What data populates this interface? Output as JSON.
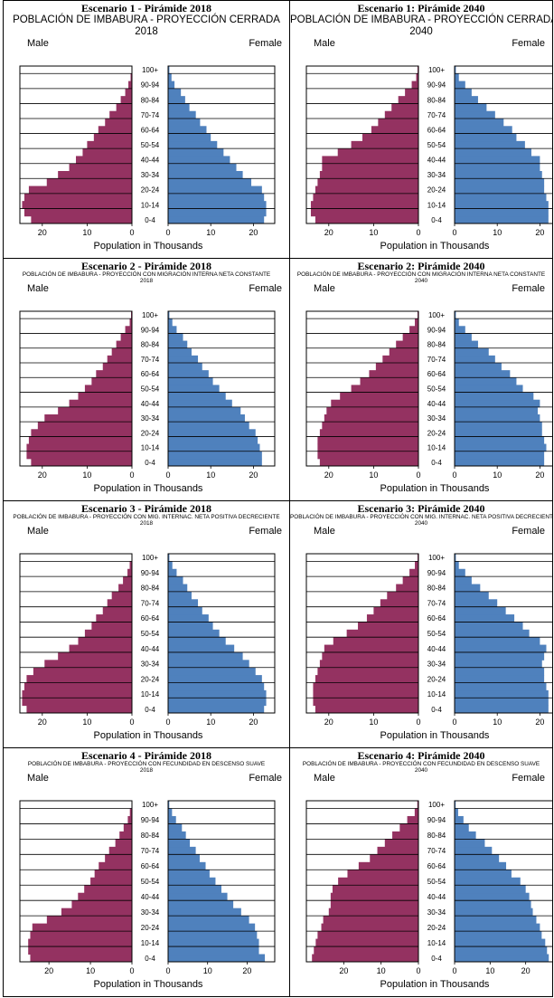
{
  "figure": {
    "male_color": "#943261",
    "female_color": "#4f81bd",
    "common": {
      "male_label": "Male",
      "female_label": "Female",
      "xlabel": "Population in Thousands",
      "age_groups": [
        "0-4",
        "5-9",
        "10-14",
        "15-19",
        "20-24",
        "25-29",
        "30-34",
        "35-39",
        "40-44",
        "45-49",
        "50-54",
        "55-59",
        "60-64",
        "65-69",
        "70-74",
        "75-79",
        "80-84",
        "85-89",
        "90-94",
        "95-99",
        "100+"
      ],
      "age_tick_labels": [
        "100+",
        "90-94",
        "80-84",
        "70-74",
        "60-64",
        "50-54",
        "40-44",
        "30-34",
        "20-24",
        "10-14",
        "0-4"
      ],
      "x_ticks": [
        "20",
        "10",
        "0",
        "0",
        "10",
        "20"
      ]
    }
  },
  "chart_data": [
    {
      "type": "bar",
      "heading": "Escenario 1 - Pirámide 2018",
      "subtitle_lines": [
        "POBLACIÓN DE IMBABURA - PROYECCIÓN CERRADA",
        "2018"
      ],
      "xlim": [
        0,
        25
      ],
      "categories": [
        "0-4",
        "5-9",
        "10-14",
        "15-19",
        "20-24",
        "25-29",
        "30-34",
        "35-39",
        "40-44",
        "45-49",
        "50-54",
        "55-59",
        "60-64",
        "65-69",
        "70-74",
        "75-79",
        "80-84",
        "85-89",
        "90-94",
        "95-99",
        "100+"
      ],
      "series": [
        {
          "name": "Male",
          "values": [
            22.5,
            24.0,
            24.5,
            24.0,
            23.0,
            19.0,
            16.5,
            14.0,
            12.5,
            11.0,
            10.0,
            8.5,
            7.5,
            6.0,
            5.0,
            3.5,
            2.5,
            1.5,
            0.8,
            0.3,
            0.1
          ]
        },
        {
          "name": "Female",
          "values": [
            22.5,
            23.0,
            23.0,
            22.5,
            22.0,
            19.5,
            17.5,
            16.0,
            14.5,
            13.0,
            11.5,
            10.0,
            9.0,
            7.5,
            6.5,
            5.0,
            4.0,
            3.0,
            1.5,
            0.8,
            0.3
          ]
        }
      ]
    },
    {
      "type": "bar",
      "heading": "Escenario 1: Pirámide 2040",
      "subtitle_lines": [
        "POBLACIÓN DE IMBABURA - PROYECCIÓN CERRADA",
        "2040"
      ],
      "xlim": [
        0,
        25
      ],
      "categories": [
        "0-4",
        "5-9",
        "10-14",
        "15-19",
        "20-24",
        "25-29",
        "30-34",
        "35-39",
        "40-44",
        "45-49",
        "50-54",
        "55-59",
        "60-64",
        "65-69",
        "70-74",
        "75-79",
        "80-84",
        "85-89",
        "90-94",
        "95-99",
        "100+"
      ],
      "series": [
        {
          "name": "Male",
          "values": [
            23.0,
            24.0,
            24.0,
            23.5,
            23.0,
            22.5,
            22.0,
            21.5,
            21.5,
            18.0,
            15.0,
            12.5,
            10.5,
            9.0,
            7.5,
            6.0,
            4.5,
            3.0,
            1.5,
            0.5,
            0.2
          ]
        },
        {
          "name": "Female",
          "values": [
            22.0,
            22.0,
            22.0,
            21.5,
            21.0,
            21.0,
            20.5,
            20.0,
            20.0,
            18.0,
            16.5,
            14.5,
            13.5,
            11.5,
            9.5,
            7.5,
            5.5,
            4.0,
            2.5,
            1.0,
            0.3
          ]
        }
      ]
    },
    {
      "type": "bar",
      "heading": "Escenario 2 - Pirámide 2018",
      "subtitle_lines": [
        "POBLACIÓN DE IMBABURA - PROYECCIÓN CON MIGRACIÓN INTERNA NETA CONSTANTE",
        "2018"
      ],
      "xlim": [
        0,
        25
      ],
      "categories": [
        "0-4",
        "5-9",
        "10-14",
        "15-19",
        "20-24",
        "25-29",
        "30-34",
        "35-39",
        "40-44",
        "45-49",
        "50-54",
        "55-59",
        "60-64",
        "65-69",
        "70-74",
        "75-79",
        "80-84",
        "85-89",
        "90-94",
        "95-99",
        "100+"
      ],
      "series": [
        {
          "name": "Male",
          "values": [
            22.5,
            23.5,
            23.5,
            23.0,
            22.5,
            21.0,
            19.5,
            16.5,
            14.0,
            12.0,
            10.5,
            9.0,
            8.0,
            6.5,
            5.5,
            4.5,
            3.5,
            2.5,
            1.5,
            0.5,
            0.2
          ]
        },
        {
          "name": "Female",
          "values": [
            22.0,
            22.0,
            21.5,
            21.0,
            20.5,
            19.0,
            18.0,
            17.0,
            15.0,
            13.5,
            12.0,
            10.5,
            9.5,
            8.0,
            7.0,
            5.5,
            4.5,
            3.5,
            2.0,
            1.0,
            0.3
          ]
        }
      ]
    },
    {
      "type": "bar",
      "heading": "Escenario 2: Pirámide 2040",
      "subtitle_lines": [
        "POBLACIÓN DE IMBABURA - PROYECCIÓN CON MIGRACIÓN INTERNA NETA CONSTANTE",
        "2040"
      ],
      "xlim": [
        0,
        25
      ],
      "categories": [
        "0-4",
        "5-9",
        "10-14",
        "15-19",
        "20-24",
        "25-29",
        "30-34",
        "35-39",
        "40-44",
        "45-49",
        "50-54",
        "55-59",
        "60-64",
        "65-69",
        "70-74",
        "75-79",
        "80-84",
        "85-89",
        "90-94",
        "95-99",
        "100+"
      ],
      "series": [
        {
          "name": "Male",
          "values": [
            22.0,
            22.5,
            22.5,
            22.5,
            22.0,
            21.5,
            21.0,
            20.5,
            19.5,
            17.5,
            15.0,
            13.0,
            11.0,
            9.5,
            8.0,
            6.5,
            5.0,
            3.5,
            2.0,
            0.8,
            0.2
          ]
        },
        {
          "name": "Female",
          "values": [
            21.0,
            21.0,
            21.5,
            21.0,
            20.5,
            20.5,
            20.0,
            19.5,
            20.0,
            18.5,
            16.0,
            14.5,
            13.0,
            11.0,
            9.5,
            8.0,
            5.5,
            4.0,
            2.5,
            1.0,
            0.3
          ]
        }
      ]
    },
    {
      "type": "bar",
      "heading": "Escenario 3 - Pirámide 2018",
      "subtitle_lines": [
        "POBLACIÓN DE IMBABURA - PROYECCIÓN CON MIG. INTERNAC. NETA POSITIVA DECRECIENTE",
        "2018"
      ],
      "xlim": [
        0,
        25
      ],
      "categories": [
        "0-4",
        "5-9",
        "10-14",
        "15-19",
        "20-24",
        "25-29",
        "30-34",
        "35-39",
        "40-44",
        "45-49",
        "50-54",
        "55-59",
        "60-64",
        "65-69",
        "70-74",
        "75-79",
        "80-84",
        "85-89",
        "90-94",
        "95-99",
        "100+"
      ],
      "series": [
        {
          "name": "Male",
          "values": [
            23.5,
            24.5,
            24.5,
            24.0,
            23.5,
            22.0,
            19.5,
            16.5,
            14.0,
            12.0,
            10.5,
            9.0,
            8.0,
            6.5,
            5.5,
            4.5,
            3.0,
            2.0,
            1.0,
            0.5,
            0.1
          ]
        },
        {
          "name": "Female",
          "values": [
            22.5,
            23.0,
            23.0,
            22.5,
            22.0,
            20.5,
            19.0,
            17.5,
            15.5,
            13.5,
            12.0,
            10.5,
            9.5,
            8.0,
            7.0,
            5.5,
            4.5,
            3.5,
            2.0,
            1.0,
            0.3
          ]
        }
      ]
    },
    {
      "type": "bar",
      "heading": "Escenario 3: Pirámide 2040",
      "subtitle_lines": [
        "POBLACIÓN DE IMBABURA - PROYECCIÓN CON MIG. INTERNAC. NETA POSITIVA DECRECIENTE",
        "2040"
      ],
      "xlim": [
        0,
        25
      ],
      "categories": [
        "0-4",
        "5-9",
        "10-14",
        "15-19",
        "20-24",
        "25-29",
        "30-34",
        "35-39",
        "40-44",
        "45-49",
        "50-54",
        "55-59",
        "60-64",
        "65-69",
        "70-74",
        "75-79",
        "80-84",
        "85-89",
        "90-94",
        "95-99",
        "100+"
      ],
      "series": [
        {
          "name": "Male",
          "values": [
            23.0,
            23.5,
            23.5,
            23.5,
            23.0,
            22.5,
            22.0,
            21.5,
            21.0,
            19.0,
            16.0,
            13.5,
            11.5,
            10.0,
            8.5,
            7.0,
            5.0,
            3.5,
            2.0,
            0.8,
            0.2
          ]
        },
        {
          "name": "Female",
          "values": [
            22.0,
            22.0,
            22.0,
            21.5,
            21.0,
            21.0,
            20.5,
            21.0,
            21.5,
            20.0,
            17.5,
            16.0,
            14.0,
            12.0,
            10.0,
            8.0,
            6.0,
            4.0,
            2.5,
            1.0,
            0.3
          ]
        }
      ]
    },
    {
      "type": "bar",
      "heading": "Escenario 4 - Pirámide 2018",
      "subtitle_lines": [
        "POBLACIÓN DE IMBABURA - PROYECCIÓN CON FECUNDIDAD EN DESCENSO SUAVE",
        "2018"
      ],
      "xlim": [
        0,
        27
      ],
      "categories": [
        "0-4",
        "5-9",
        "10-14",
        "15-19",
        "20-24",
        "25-29",
        "30-34",
        "35-39",
        "40-44",
        "45-49",
        "50-54",
        "55-59",
        "60-64",
        "65-69",
        "70-74",
        "75-79",
        "80-84",
        "85-89",
        "90-94",
        "95-99",
        "100+"
      ],
      "series": [
        {
          "name": "Male",
          "values": [
            24.5,
            25.0,
            25.0,
            24.5,
            24.0,
            20.5,
            17.0,
            14.5,
            13.0,
            11.5,
            10.0,
            9.0,
            8.0,
            6.5,
            5.5,
            4.0,
            3.0,
            2.0,
            1.0,
            0.5,
            0.1
          ]
        },
        {
          "name": "Female",
          "values": [
            24.5,
            23.0,
            23.0,
            22.5,
            22.0,
            20.5,
            18.5,
            16.5,
            15.0,
            13.5,
            12.0,
            10.5,
            9.5,
            8.0,
            7.0,
            5.5,
            4.5,
            3.5,
            2.0,
            1.0,
            0.3
          ]
        }
      ]
    },
    {
      "type": "bar",
      "heading": "Escenario 4: Pirámide 2040",
      "subtitle_lines": [
        "POBLACIÓN DE IMBABURA - PROYECCIÓN CON FECUNDIDAD EN DESCENSO SUAVE",
        "2040"
      ],
      "xlim": [
        0,
        30
      ],
      "categories": [
        "0-4",
        "5-9",
        "10-14",
        "15-19",
        "20-24",
        "25-29",
        "30-34",
        "35-39",
        "40-44",
        "45-49",
        "50-54",
        "55-59",
        "60-64",
        "65-69",
        "70-74",
        "75-79",
        "80-84",
        "85-89",
        "90-94",
        "95-99",
        "100+"
      ],
      "series": [
        {
          "name": "Male",
          "values": [
            28.5,
            28.0,
            27.5,
            27.0,
            26.0,
            25.5,
            24.0,
            23.5,
            23.5,
            23.0,
            21.5,
            19.0,
            16.0,
            13.0,
            11.0,
            9.0,
            7.0,
            5.0,
            3.0,
            1.0,
            0.3
          ]
        },
        {
          "name": "Female",
          "values": [
            26.5,
            26.0,
            25.5,
            24.5,
            24.0,
            23.0,
            22.0,
            21.5,
            21.0,
            20.0,
            18.5,
            16.0,
            14.5,
            12.5,
            10.5,
            8.5,
            6.0,
            4.0,
            2.5,
            1.0,
            0.3
          ]
        }
      ]
    }
  ]
}
